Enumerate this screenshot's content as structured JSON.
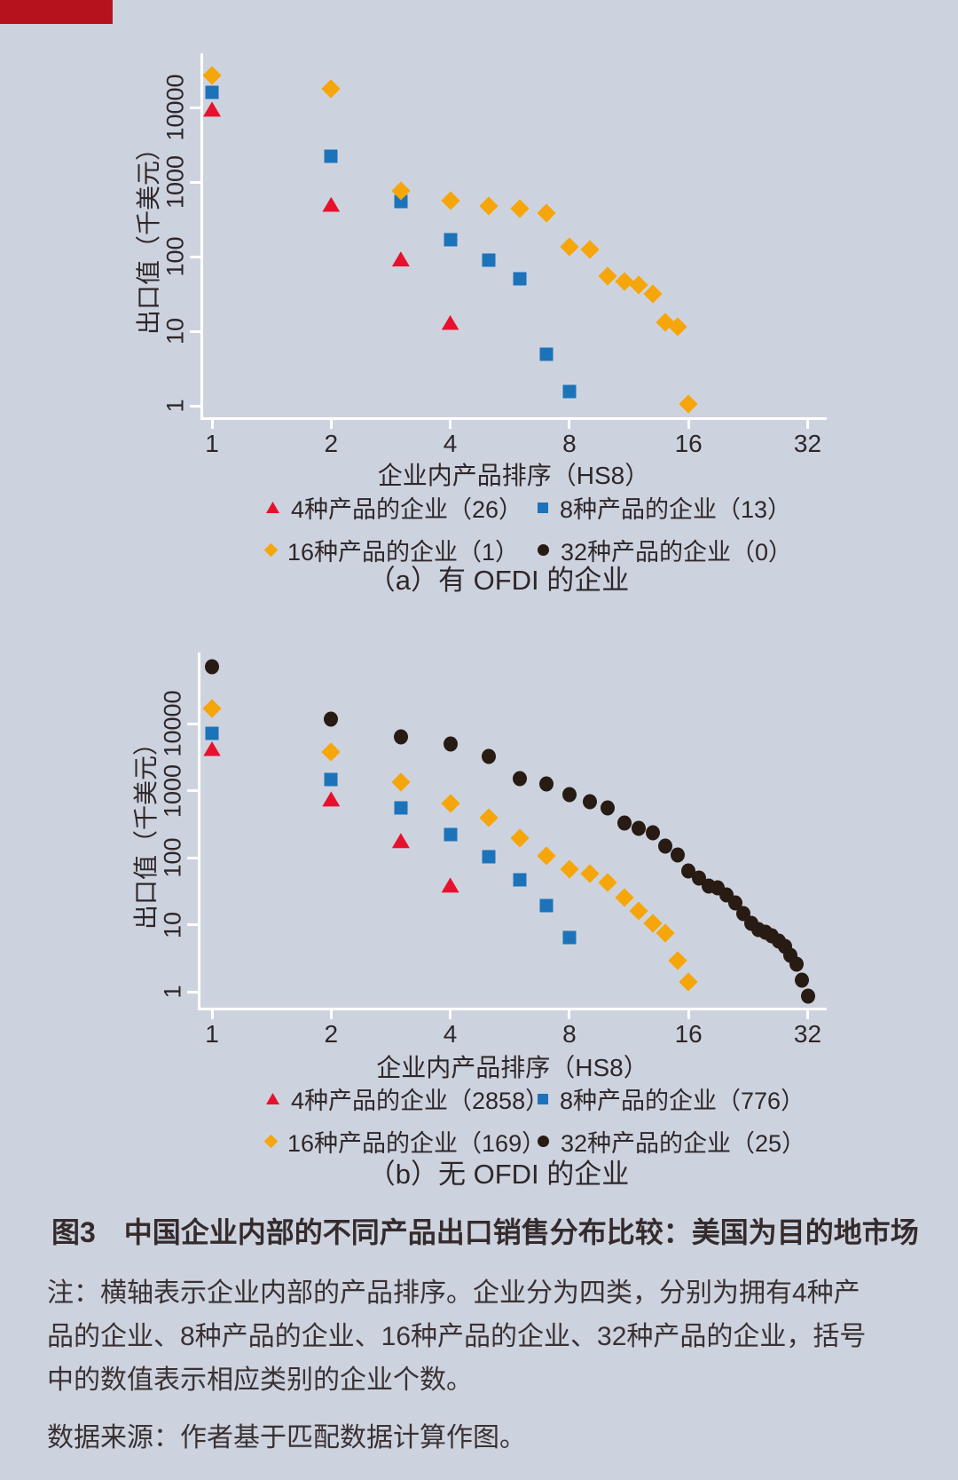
{
  "page": {
    "background": "#cdd3de",
    "banner_color": "#b5121c"
  },
  "colors": {
    "red": "#e8112d",
    "blue": "#1c73b9",
    "orange": "#f6a50b",
    "black": "#281b14",
    "axis": "#ffffff"
  },
  "caption": "图3　中国企业内部的不同产品出口销售分布比较：美国为目的地市场",
  "notes": [
    "注：横轴表示企业内部的产品排序。企业分为四类，分别为拥有4种产",
    "品的企业、8种产品的企业、16种产品的企业、32种产品的企业，括号",
    "中的数值表示相应类别的企业个数。"
  ],
  "source": "数据来源：作者基于匹配数据计算作图。",
  "chart_data": [
    {
      "id": "a",
      "type": "scatter",
      "title": "（a）有 OFDI 的企业",
      "xlabel": "企业内产品排序（HS8）",
      "ylabel": "出口值（千美元）",
      "x_scale": "log2",
      "y_scale": "log10",
      "xlim": [
        1,
        32
      ],
      "ylim": [
        0.8,
        55000
      ],
      "x_ticks": [
        1,
        2,
        4,
        8,
        16,
        32
      ],
      "y_ticks": [
        10000,
        1000,
        100,
        10,
        1
      ],
      "grid": false,
      "legend_position": "bottom",
      "series": [
        {
          "name": "4种产品的企业（26）",
          "marker": "triangle",
          "color": "red",
          "points": [
            [
              1,
              9500
            ],
            [
              2,
              500
            ],
            [
              3,
              93
            ],
            [
              4,
              13
            ]
          ]
        },
        {
          "name": "8种产品的企业（13）",
          "marker": "square",
          "color": "blue",
          "points": [
            [
              1,
              16000
            ],
            [
              2,
              2200
            ],
            [
              3,
              550
            ],
            [
              4,
              170
            ],
            [
              5,
              89
            ],
            [
              6,
              51
            ],
            [
              7,
              4.9
            ],
            [
              8,
              1.55
            ]
          ]
        },
        {
          "name": "16种产品的企业（1）",
          "marker": "diamond",
          "color": "orange",
          "points": [
            [
              1,
              27000
            ],
            [
              2,
              18000
            ],
            [
              3,
              760
            ],
            [
              4,
              560
            ],
            [
              5,
              480
            ],
            [
              6,
              440
            ],
            [
              7,
              380
            ],
            [
              8,
              135
            ],
            [
              9,
              123
            ],
            [
              10,
              54
            ],
            [
              11,
              47
            ],
            [
              12,
              42
            ],
            [
              13,
              32
            ],
            [
              14,
              13
            ],
            [
              15,
              11.5
            ],
            [
              16,
              1.05
            ]
          ]
        },
        {
          "name": "32种产品的企业（0）",
          "marker": "circle",
          "color": "black",
          "points": []
        }
      ]
    },
    {
      "id": "b",
      "type": "scatter",
      "title": "（b）无 OFDI 的企业",
      "xlabel": "企业内产品排序（HS8）",
      "ylabel": "出口值（千美元）",
      "x_scale": "log2",
      "y_scale": "log10",
      "xlim": [
        1,
        32
      ],
      "ylim": [
        0.7,
        80000
      ],
      "x_ticks": [
        1,
        2,
        4,
        8,
        16,
        32
      ],
      "y_ticks": [
        10000,
        1000,
        100,
        10,
        1
      ],
      "grid": false,
      "legend_position": "bottom",
      "series": [
        {
          "name": "4种产品的企业（2858）",
          "marker": "triangle",
          "color": "red",
          "points": [
            [
              1,
              4200
            ],
            [
              2,
              750
            ],
            [
              3,
              180
            ],
            [
              4,
              39
            ]
          ]
        },
        {
          "name": "8种产品的企业（776）",
          "marker": "square",
          "color": "blue",
          "points": [
            [
              1,
              7200
            ],
            [
              2,
              1450
            ],
            [
              3,
              550
            ],
            [
              4,
              220
            ],
            [
              5,
              102
            ],
            [
              6,
              46
            ],
            [
              7,
              19
            ],
            [
              8,
              6.5
            ]
          ]
        },
        {
          "name": "16种产品的企业（169）",
          "marker": "diamond",
          "color": "orange",
          "points": [
            [
              1,
              17000
            ],
            [
              2,
              3800
            ],
            [
              3,
              1350
            ],
            [
              4,
              640
            ],
            [
              5,
              400
            ],
            [
              6,
              195
            ],
            [
              7,
              107
            ],
            [
              8,
              67
            ],
            [
              9,
              58
            ],
            [
              10,
              42
            ],
            [
              11,
              25
            ],
            [
              12,
              16
            ],
            [
              13,
              10.5
            ],
            [
              14,
              7.4
            ],
            [
              15,
              2.9
            ],
            [
              16,
              1.4
            ]
          ]
        },
        {
          "name": "32种产品的企业（25）",
          "marker": "circle",
          "color": "black",
          "points": [
            [
              1,
              70000
            ],
            [
              2,
              11600
            ],
            [
              3,
              6300
            ],
            [
              4,
              4900
            ],
            [
              5,
              3200
            ],
            [
              6,
              1500
            ],
            [
              7,
              1260
            ],
            [
              8,
              870
            ],
            [
              9,
              680
            ],
            [
              10,
              560
            ],
            [
              11,
              330
            ],
            [
              12,
              270
            ],
            [
              13,
              235
            ],
            [
              14,
              148
            ],
            [
              15,
              110
            ],
            [
              16,
              64
            ],
            [
              17,
              50
            ],
            [
              18,
              38
            ],
            [
              19,
              35
            ],
            [
              20,
              28
            ],
            [
              21,
              21
            ],
            [
              22,
              14.5
            ],
            [
              23,
              10.5
            ],
            [
              24,
              8.5
            ],
            [
              25,
              7.6
            ],
            [
              26,
              6.9
            ],
            [
              27,
              5.7
            ],
            [
              28,
              4.8
            ],
            [
              29,
              3.5
            ],
            [
              30,
              2.6
            ],
            [
              31,
              1.5
            ],
            [
              32,
              0.85
            ]
          ]
        }
      ]
    }
  ]
}
